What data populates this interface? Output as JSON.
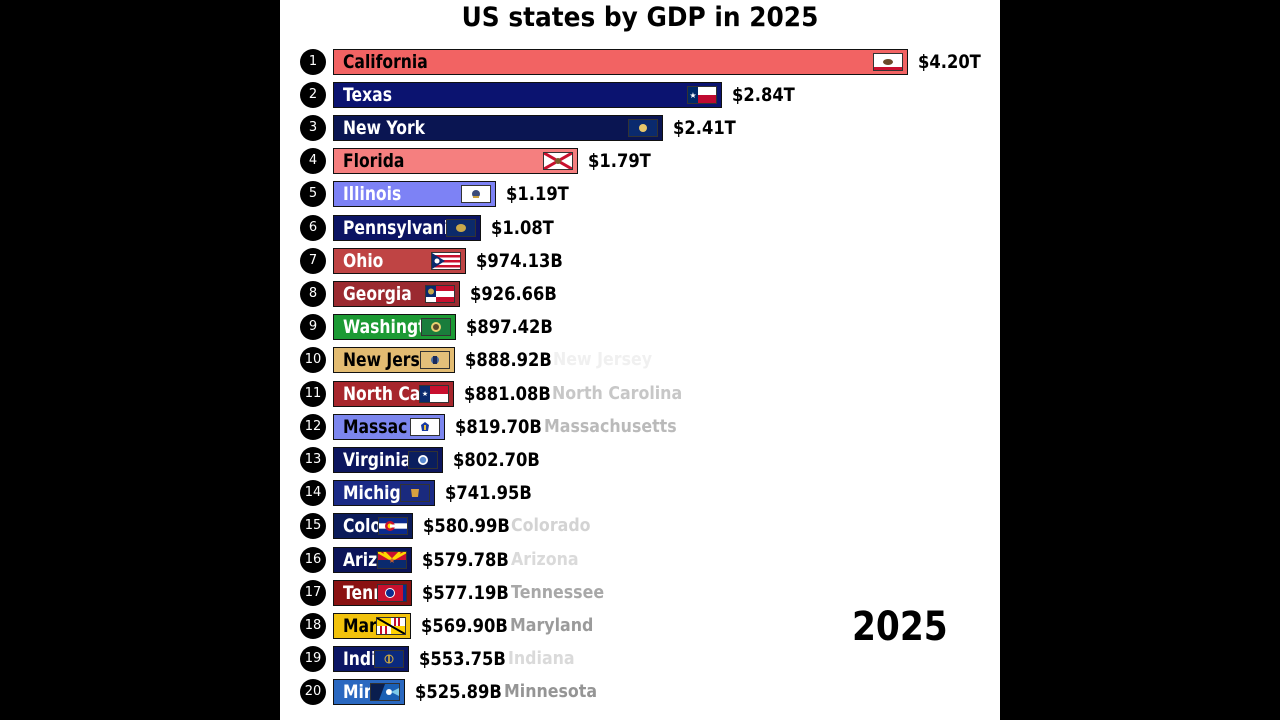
{
  "chart_data": {
    "type": "bar",
    "orientation": "horizontal",
    "title": "US states by GDP in 2025",
    "year": "2025",
    "xlim": [
      0,
      4.2
    ],
    "unit": "trillion USD",
    "grid": false,
    "legend": "none",
    "categories": [
      "California",
      "Texas",
      "New York",
      "Florida",
      "Illinois",
      "Pennsylvani",
      "Ohio",
      "Georgia",
      "Washingt",
      "New Jers",
      "North Ca",
      "Massac",
      "Virginia",
      "Michig",
      "Colo",
      "Ariz",
      "Tenn",
      "Mar",
      "Indi",
      "Min"
    ],
    "ranks": [
      "1",
      "2",
      "3",
      "4",
      "5",
      "6",
      "7",
      "8",
      "9",
      "10",
      "11",
      "12",
      "13",
      "14",
      "15",
      "16",
      "17",
      "18",
      "19",
      "20"
    ],
    "values": [
      4.2,
      2.84,
      2.41,
      1.79,
      1.19,
      1.08,
      0.97413,
      0.92666,
      0.89742,
      0.88892,
      0.88108,
      0.8197,
      0.8027,
      0.74195,
      0.58099,
      0.57978,
      0.57719,
      0.5699,
      0.55375,
      0.52589
    ],
    "value_labels": [
      "$4.20T",
      "$2.84T",
      "$2.41T",
      "$1.79T",
      "$1.19T",
      "$1.08T",
      "$974.13B",
      "$926.66B",
      "$897.42B",
      "$888.92B",
      "$881.08B",
      "$819.70B",
      "$802.70B",
      "$741.95B",
      "$580.99B",
      "$579.78B",
      "$577.19B",
      "$569.90B",
      "$553.75B",
      "$525.89B"
    ],
    "ghost_labels": [
      "",
      "",
      "",
      "",
      "",
      "",
      "",
      "",
      "",
      "New Jersey",
      "North Carolina",
      "Massachusetts",
      "",
      "",
      "Colorado",
      "Arizona",
      "Tennessee",
      "Maryland",
      "Indiana",
      "Minnesota"
    ],
    "ghost_opacity": [
      0,
      0,
      0,
      0,
      0,
      0,
      0,
      0,
      0,
      0.12,
      0.45,
      0.55,
      0,
      0,
      0.35,
      0.3,
      0.7,
      0.8,
      0.3,
      0.85
    ],
    "bar_colors": [
      "#f26363",
      "#0b1370",
      "#0a1552",
      "#f57f7f",
      "#7d82f5",
      "#0b1463",
      "#bf4444",
      "#9b2a30",
      "#1c9a34",
      "#e3bc72",
      "#a7262c",
      "#7c86ee",
      "#0c165e",
      "#1a2a86",
      "#0b1b5a",
      "#0b1459",
      "#8a1212",
      "#f2c20c",
      "#0b1664",
      "#2a68c0"
    ],
    "dark_text": [
      true,
      false,
      false,
      true,
      false,
      false,
      false,
      false,
      false,
      true,
      false,
      true,
      false,
      false,
      false,
      false,
      false,
      true,
      false,
      false
    ],
    "flags": [
      "california-flag",
      "texas-flag",
      "new-york-flag",
      "florida-flag",
      "illinois-flag",
      "pennsylvania-flag",
      "ohio-flag",
      "georgia-flag",
      "washington-flag",
      "new-jersey-flag",
      "north-carolina-flag",
      "massachusetts-flag",
      "virginia-flag",
      "michigan-flag",
      "colorado-flag",
      "arizona-flag",
      "tennessee-flag",
      "maryland-flag",
      "indiana-flag",
      "minnesota-flag"
    ]
  }
}
